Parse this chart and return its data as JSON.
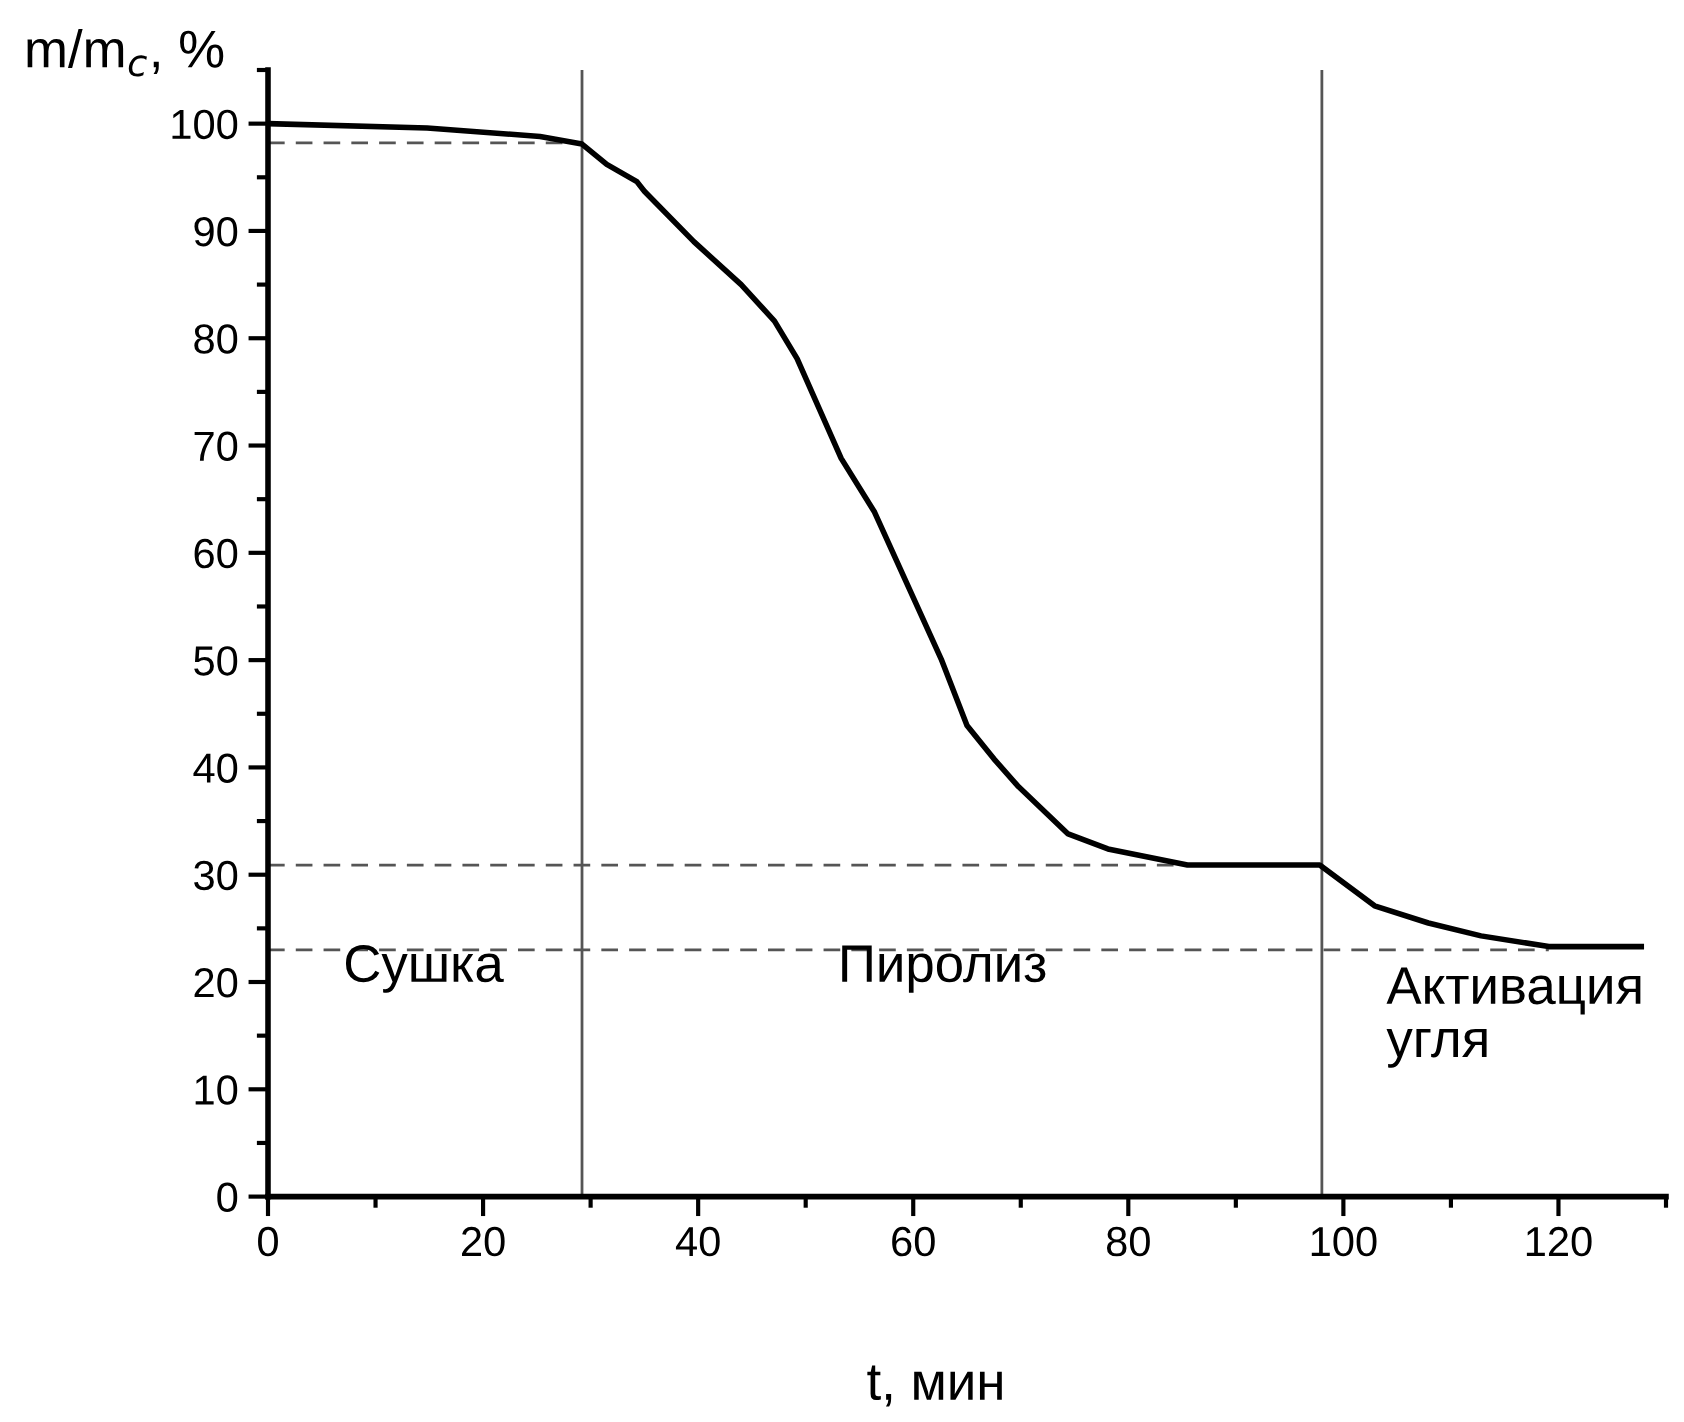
{
  "chart_data": {
    "type": "line",
    "xlabel": "t, мин",
    "ylabel": "m/m$_{c}$, %",
    "x": [
      0,
      14.8,
      25.3,
      29.2,
      31.5,
      34.3,
      35,
      39.6,
      44,
      47.1,
      49.2,
      53.3,
      56.4,
      62.6,
      65.0,
      67.5,
      69.7,
      74.4,
      78.1,
      85.5,
      97.8,
      102.9,
      107.9,
      112.8,
      119.1,
      127.7
    ],
    "series": [
      {
        "color": "#000000",
        "values": [
          100,
          99.6,
          98.8,
          98.1,
          96.2,
          94.6,
          93.7,
          89.0,
          85.0,
          81.6,
          78.1,
          68.8,
          63.8,
          50.1,
          43.9,
          40.8,
          38.3,
          33.8,
          32.4,
          30.9,
          30.9,
          27.1,
          25.5,
          24.3,
          23.3,
          23.3
        ]
      }
    ],
    "xlim": [
      0,
      130
    ],
    "ylim": [
      0,
      105
    ],
    "xticks": [
      0,
      {
        "value": 10,
        "label": null
      },
      20,
      {
        "value": 30,
        "label": null
      },
      40,
      {
        "value": 50,
        "label": null
      },
      60,
      {
        "value": 70,
        "label": null
      },
      80,
      {
        "value": 90,
        "label": null
      },
      100,
      {
        "value": 110,
        "label": null
      },
      120,
      {
        "value": 130,
        "label": null
      }
    ],
    "yticks": [
      0,
      {
        "value": 5,
        "label": null
      },
      10,
      {
        "value": 15,
        "label": null
      },
      20,
      {
        "value": 25,
        "label": null
      },
      30,
      {
        "value": 35,
        "label": null
      },
      40,
      {
        "value": 45,
        "label": null
      },
      50,
      {
        "value": 55,
        "label": null
      },
      60,
      {
        "value": 65,
        "label": null
      },
      70,
      {
        "value": 75,
        "label": null
      },
      80,
      {
        "value": 85,
        "label": null
      },
      90,
      {
        "value": 95,
        "label": null
      },
      100,
      {
        "value": 105,
        "label": null
      }
    ],
    "ref_lines": [
      {
        "axis": "x",
        "value": 29.2,
        "color": "#555555",
        "line_style": "solid"
      },
      {
        "axis": "x",
        "value": 98.0,
        "color": "#555555",
        "line_style": "solid"
      },
      {
        "axis": "y",
        "value": 98.2,
        "color": "#555555",
        "line_style": "dashed"
      },
      {
        "axis": "y",
        "value": 30.9,
        "color": "#555555",
        "line_style": "dashed"
      },
      {
        "axis": "y",
        "value": 23.0,
        "color": "#555555",
        "line_style": "dashed"
      }
    ],
    "annotations": [
      "Сушка",
      "Пиролиз",
      "Активация\nугля"
    ],
    "grid": false,
    "marker": "none",
    "line_style": "solid"
  }
}
